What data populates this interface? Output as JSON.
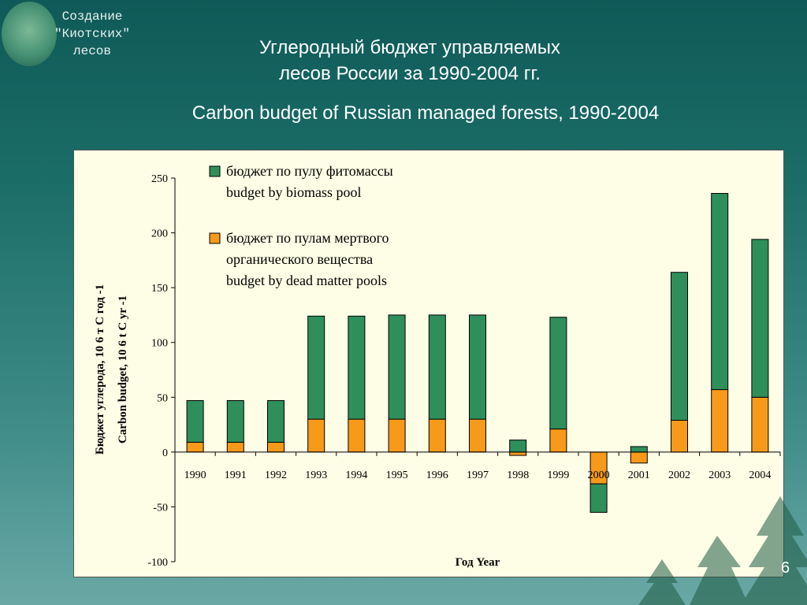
{
  "logo": {
    "icon": "forest-emblem-icon",
    "text": [
      "Создание",
      "\"Киотских\"",
      "лесов"
    ]
  },
  "header": {
    "title_lines": [
      "Углеродный бюджет управляемых",
      "лесов России за 1990-2004 гг."
    ],
    "subtitle": "Carbon budget of Russian managed forests, 1990-2004"
  },
  "page_number": "6",
  "chart_data": {
    "type": "bar",
    "stacked": true,
    "categories": [
      "1990",
      "1991",
      "1992",
      "1993",
      "1994",
      "1995",
      "1996",
      "1997",
      "1998",
      "1999",
      "2000",
      "2001",
      "2002",
      "2003",
      "2004"
    ],
    "series": [
      {
        "name": "бюджет по пулам мертвого органического вещества budget by dead matter pools",
        "name_lines": [
          "бюджет по пулам мертвого",
          "органического вещества",
          "budget by dead matter pools"
        ],
        "color": "#f79a1a",
        "values": [
          9,
          9,
          9,
          30,
          30,
          30,
          30,
          30,
          -3,
          21,
          -29,
          -10,
          29,
          57,
          50
        ]
      },
      {
        "name": "бюджет по пулу фитомассы budget by biomass pool",
        "name_lines": [
          "бюджет по пулу фитомассы",
          "budget by biomass pool"
        ],
        "color": "#2f8f5a",
        "values": [
          38,
          38,
          38,
          94,
          94,
          95,
          95,
          95,
          11,
          102,
          -26,
          5,
          135,
          179,
          144
        ]
      }
    ],
    "ylim": [
      -100,
      250
    ],
    "yticks": [
      250,
      200,
      150,
      100,
      50,
      0,
      -50,
      -100
    ],
    "ylabel_lines": [
      "Бюджет углерода, 10 6 т С год -1",
      "Carbon budget, 10 6 t C yr -1"
    ],
    "xlabel": "Год   Year",
    "legend_position": "top-center",
    "grid": false
  }
}
